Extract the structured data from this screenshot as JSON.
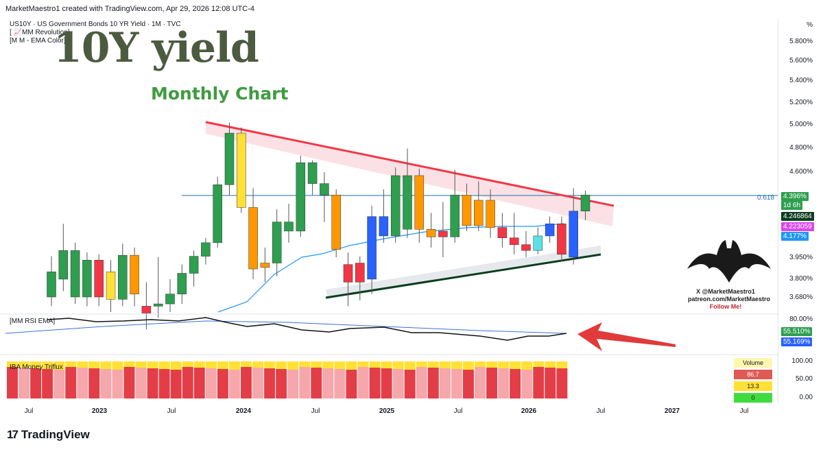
{
  "header": {
    "published": "MarketMaestro1 created with TradingView.com, Apr 29, 2026 12:08 UTC-4"
  },
  "legend": {
    "symbol": "US10Y · US Government Bonds 10 YR Yield · 1M · TVC",
    "indicator1": "[ 📈MM Revolution]",
    "indicator2": "[M M - EMA Color]",
    "rsi_label": "[MM RSI EMA]",
    "flow_label": "IBA Money Triflux"
  },
  "overlay": {
    "title": "10Y yield",
    "subtitle": "Monthly Chart",
    "bat_line1": "X @MarketMaestro1",
    "bat_line2": "patreon.com/MarketMaestro",
    "bat_line3": "Follow Me!"
  },
  "price_axis": {
    "unit": "%",
    "ticks": [
      "5.800%",
      "5.600%",
      "5.400%",
      "5.200%",
      "5.000%",
      "4.800%",
      "4.600%",
      "3.950%",
      "3.800%",
      "3.680%"
    ],
    "fib_label": "0.618",
    "last_price": "4.396%",
    "countdown": "1d 6h",
    "ema_value1": "4.246864",
    "ema_value2": "4.223059",
    "ema_value3": "4.177%"
  },
  "rsi_axis": {
    "top": "80.00%",
    "rsi_value": "55.510%",
    "ema_value": "55.169%"
  },
  "flow_axis": {
    "ticks": [
      "100.00",
      "50.00",
      "0.00"
    ],
    "volume_label": "Volume",
    "v1": "86.7",
    "v2": "13.3",
    "v3": "0"
  },
  "time_axis": {
    "labels": [
      "Jul",
      "2023",
      "Jul",
      "2024",
      "Jul",
      "2025",
      "Jul",
      "2026",
      "Jul",
      "2027",
      "Jul"
    ]
  },
  "branding": {
    "name": "TradingView",
    "logo": "17"
  },
  "colors": {
    "up": "#2e9e4f",
    "down": "#f23645",
    "orange": "#ff9800",
    "yellow": "#ffe135",
    "blue": "#2962ff",
    "cyan": "#5ce1e6",
    "resistance": "#f23645",
    "support": "#0b3d1f",
    "fib": "#1e6fa8",
    "ema_blue": "#2196f3",
    "pink": "#e040fb"
  },
  "chart_data": {
    "type": "candlestick",
    "title": "US10Y · US Government Bonds 10 YR Yield · 1M · TVC",
    "unit": "%",
    "fib_level": {
      "label": "0.618",
      "value": 4.396
    },
    "candles": [
      {
        "o": 3.68,
        "c": 3.85,
        "h": 3.96,
        "l": 3.6,
        "color": "green"
      },
      {
        "o": 3.8,
        "c": 4.02,
        "h": 4.24,
        "l": 3.72,
        "color": "green"
      },
      {
        "o": 4.02,
        "c": 3.68,
        "h": 4.1,
        "l": 3.62,
        "color": "green"
      },
      {
        "o": 3.68,
        "c": 3.93,
        "h": 4.0,
        "l": 3.6,
        "color": "green"
      },
      {
        "o": 3.93,
        "c": 3.68,
        "h": 3.98,
        "l": 3.6,
        "color": "red"
      },
      {
        "o": 3.85,
        "c": 3.66,
        "h": 3.93,
        "l": 3.55,
        "color": "yellow"
      },
      {
        "o": 3.66,
        "c": 3.97,
        "h": 4.09,
        "l": 3.6,
        "color": "green"
      },
      {
        "o": 3.97,
        "c": 3.7,
        "h": 4.05,
        "l": 3.6,
        "color": "orange"
      },
      {
        "o": 3.6,
        "c": 3.54,
        "h": 3.78,
        "l": 3.4,
        "color": "red"
      },
      {
        "o": 3.6,
        "c": 3.62,
        "h": 3.95,
        "l": 3.5,
        "color": "green"
      },
      {
        "o": 3.62,
        "c": 3.7,
        "h": 3.8,
        "l": 3.55,
        "color": "green"
      },
      {
        "o": 3.7,
        "c": 3.84,
        "h": 3.9,
        "l": 3.62,
        "color": "green"
      },
      {
        "o": 3.84,
        "c": 3.96,
        "h": 4.02,
        "l": 3.75,
        "color": "green"
      },
      {
        "o": 3.96,
        "c": 4.1,
        "h": 4.15,
        "l": 3.9,
        "color": "green"
      },
      {
        "o": 4.1,
        "c": 4.49,
        "h": 4.56,
        "l": 4.05,
        "color": "green"
      },
      {
        "o": 4.49,
        "c": 4.93,
        "h": 5.02,
        "l": 4.4,
        "color": "green"
      },
      {
        "o": 4.93,
        "c": 4.33,
        "h": 4.98,
        "l": 4.3,
        "color": "yellow"
      },
      {
        "o": 4.33,
        "c": 3.87,
        "h": 4.46,
        "l": 3.8,
        "color": "orange"
      },
      {
        "o": 3.88,
        "c": 3.91,
        "h": 4.05,
        "l": 3.78,
        "color": "orange"
      },
      {
        "o": 3.91,
        "c": 4.25,
        "h": 4.32,
        "l": 3.82,
        "color": "green"
      },
      {
        "o": 4.25,
        "c": 4.2,
        "h": 4.35,
        "l": 4.1,
        "color": "green"
      },
      {
        "o": 4.2,
        "c": 4.68,
        "h": 4.74,
        "l": 4.16,
        "color": "green"
      },
      {
        "o": 4.68,
        "c": 4.5,
        "h": 4.7,
        "l": 4.4,
        "color": "green"
      },
      {
        "o": 4.5,
        "c": 4.4,
        "h": 4.6,
        "l": 4.25,
        "color": "green"
      },
      {
        "o": 4.4,
        "c": 4.03,
        "h": 4.45,
        "l": 3.95,
        "color": "orange"
      },
      {
        "o": 3.9,
        "c": 3.78,
        "h": 4.0,
        "l": 3.6,
        "color": "red"
      },
      {
        "o": 3.78,
        "c": 3.91,
        "h": 3.96,
        "l": 3.65,
        "color": "red"
      },
      {
        "o": 3.8,
        "c": 4.28,
        "h": 4.34,
        "l": 3.7,
        "color": "blue"
      },
      {
        "o": 4.28,
        "c": 4.17,
        "h": 4.45,
        "l": 4.1,
        "color": "blue"
      },
      {
        "o": 4.17,
        "c": 4.57,
        "h": 4.64,
        "l": 4.1,
        "color": "green"
      },
      {
        "o": 4.57,
        "c": 4.21,
        "h": 4.8,
        "l": 4.15,
        "color": "green"
      },
      {
        "o": 4.57,
        "c": 4.21,
        "h": 4.63,
        "l": 4.1,
        "color": "orange"
      },
      {
        "o": 4.21,
        "c": 4.16,
        "h": 4.3,
        "l": 4.05,
        "color": "orange"
      },
      {
        "o": 4.16,
        "c": 4.2,
        "h": 4.36,
        "l": 3.95,
        "color": "red"
      },
      {
        "o": 4.16,
        "c": 4.4,
        "h": 4.62,
        "l": 4.1,
        "color": "green"
      },
      {
        "o": 4.4,
        "c": 4.23,
        "h": 4.5,
        "l": 4.2,
        "color": "orange"
      },
      {
        "o": 4.23,
        "c": 4.37,
        "h": 4.52,
        "l": 4.2,
        "color": "orange"
      },
      {
        "o": 4.37,
        "c": 4.22,
        "h": 4.45,
        "l": 4.15,
        "color": "orange"
      },
      {
        "o": 4.22,
        "c": 4.15,
        "h": 4.3,
        "l": 4.05,
        "color": "red"
      },
      {
        "o": 4.15,
        "c": 4.08,
        "h": 4.3,
        "l": 3.98,
        "color": "red"
      },
      {
        "o": 4.08,
        "c": 4.02,
        "h": 4.2,
        "l": 3.95,
        "color": "red"
      },
      {
        "o": 4.02,
        "c": 4.17,
        "h": 4.22,
        "l": 3.98,
        "color": "cyan"
      },
      {
        "o": 4.17,
        "c": 4.24,
        "h": 4.28,
        "l": 4.1,
        "color": "blue"
      },
      {
        "o": 4.24,
        "c": 3.98,
        "h": 4.28,
        "l": 3.92,
        "color": "red"
      },
      {
        "o": 3.95,
        "c": 4.31,
        "h": 4.46,
        "l": 3.9,
        "color": "blue"
      },
      {
        "o": 4.31,
        "c": 4.4,
        "h": 4.44,
        "l": 4.26,
        "color": "green"
      }
    ]
  }
}
